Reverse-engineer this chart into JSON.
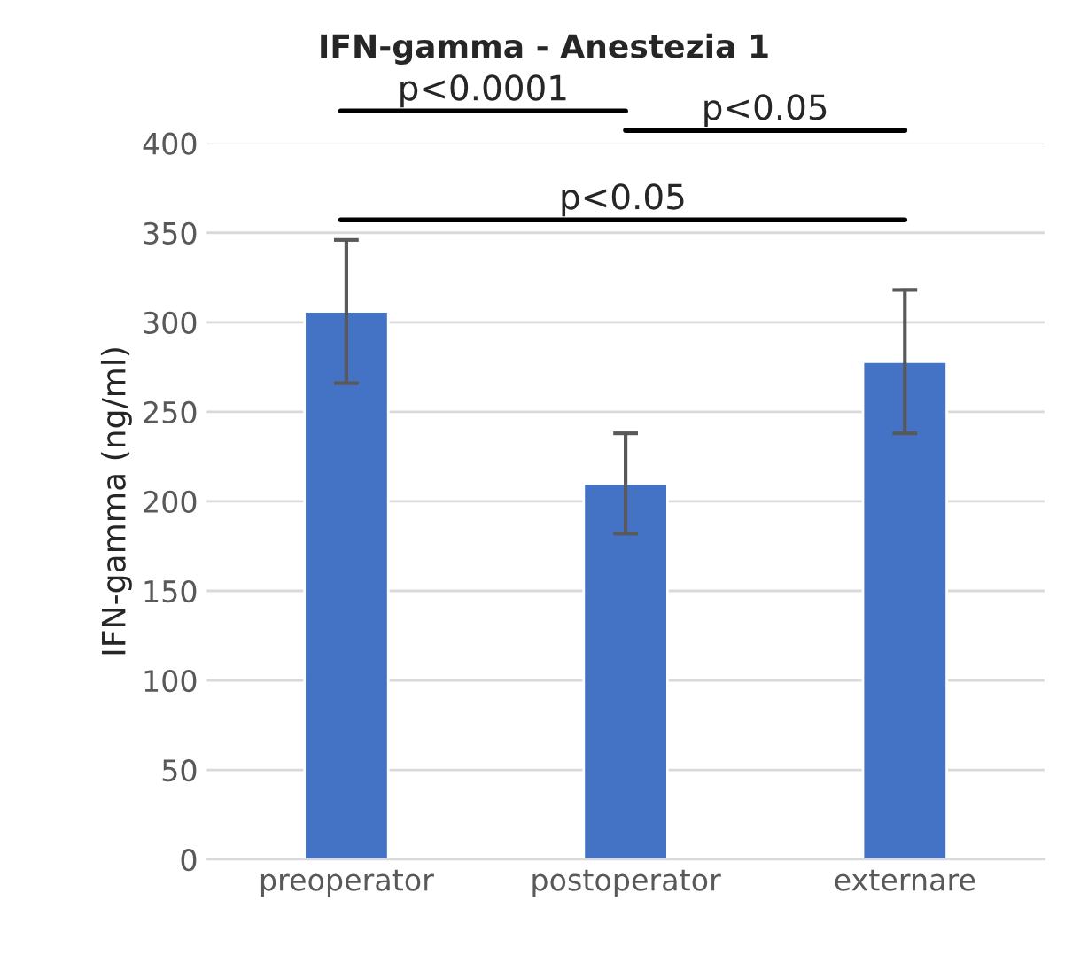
{
  "chart_data": {
    "type": "bar",
    "title": "IFN-gamma - Anestezia 1",
    "ylabel": "IFN-gamma (ng/ml)",
    "categories": [
      "preoperator",
      "postoperator",
      "externare"
    ],
    "values": [
      306,
      210,
      278
    ],
    "errors": [
      40,
      28,
      40
    ],
    "color": "#4472c4",
    "ylim": [
      0,
      400
    ],
    "yticks": [
      0,
      50,
      100,
      150,
      200,
      250,
      300,
      350,
      400
    ],
    "grid": "y",
    "annotations": [
      "p<0.0001",
      "p<0.05",
      "p<0.05"
    ]
  }
}
